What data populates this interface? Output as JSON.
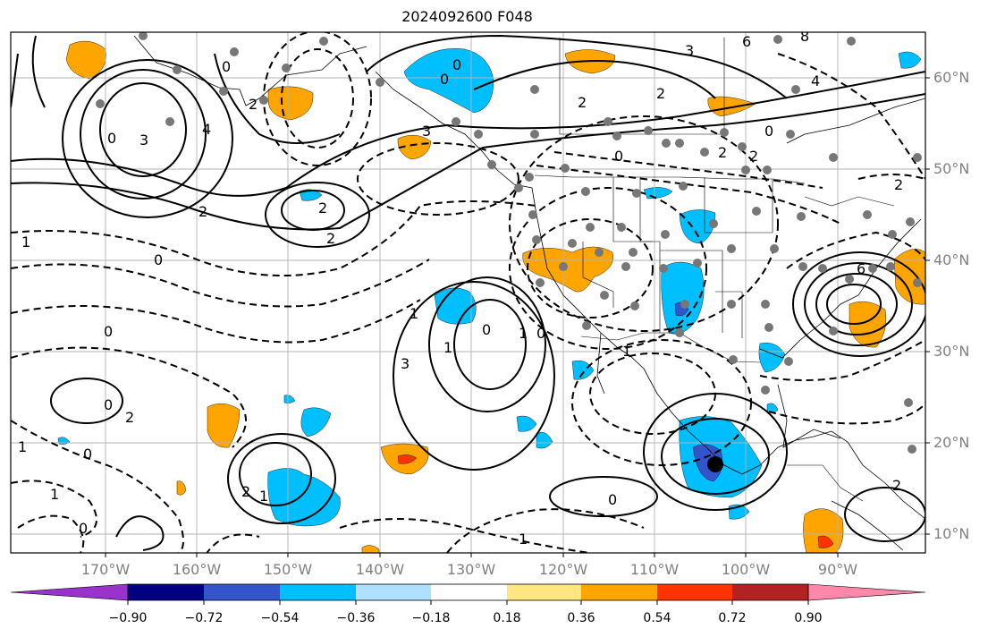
{
  "title": "2024092600 F048",
  "lat_labels": [
    "60°N",
    "50°N",
    "40°N",
    "30°N",
    "20°N",
    "10°N"
  ],
  "lon_labels": [
    "170°W",
    "160°W",
    "150°W",
    "140°W",
    "130°W",
    "120°W",
    "110°W",
    "100°W",
    "90°W"
  ],
  "contour_labels": [
    "0",
    "0",
    "2",
    "6",
    "8",
    "3",
    "4",
    "0",
    "2",
    "2",
    "0",
    "0",
    "4",
    "3",
    "3",
    "2",
    "2",
    "0",
    "2",
    "2",
    "6",
    "2",
    "1",
    "0",
    "1",
    "0",
    "2",
    "0",
    "1",
    "3",
    "0",
    "2",
    "1",
    "0",
    "1",
    "2",
    "1",
    "0",
    "0",
    "1",
    "1",
    "2",
    "1",
    "0"
  ],
  "colorbar": {
    "tick_labels": [
      "−0.90",
      "−0.72",
      "−0.54",
      "−0.36",
      "−0.18",
      "0.18",
      "0.36",
      "0.54",
      "0.72",
      "0.90"
    ],
    "colors": [
      "#9933cc",
      "#000080",
      "#3355cc",
      "#00bfff",
      "#aee0ff",
      "#ffffff",
      "#ffe680",
      "#ffa500",
      "#ff3300",
      "#b22222",
      "#ff88aa"
    ]
  }
}
